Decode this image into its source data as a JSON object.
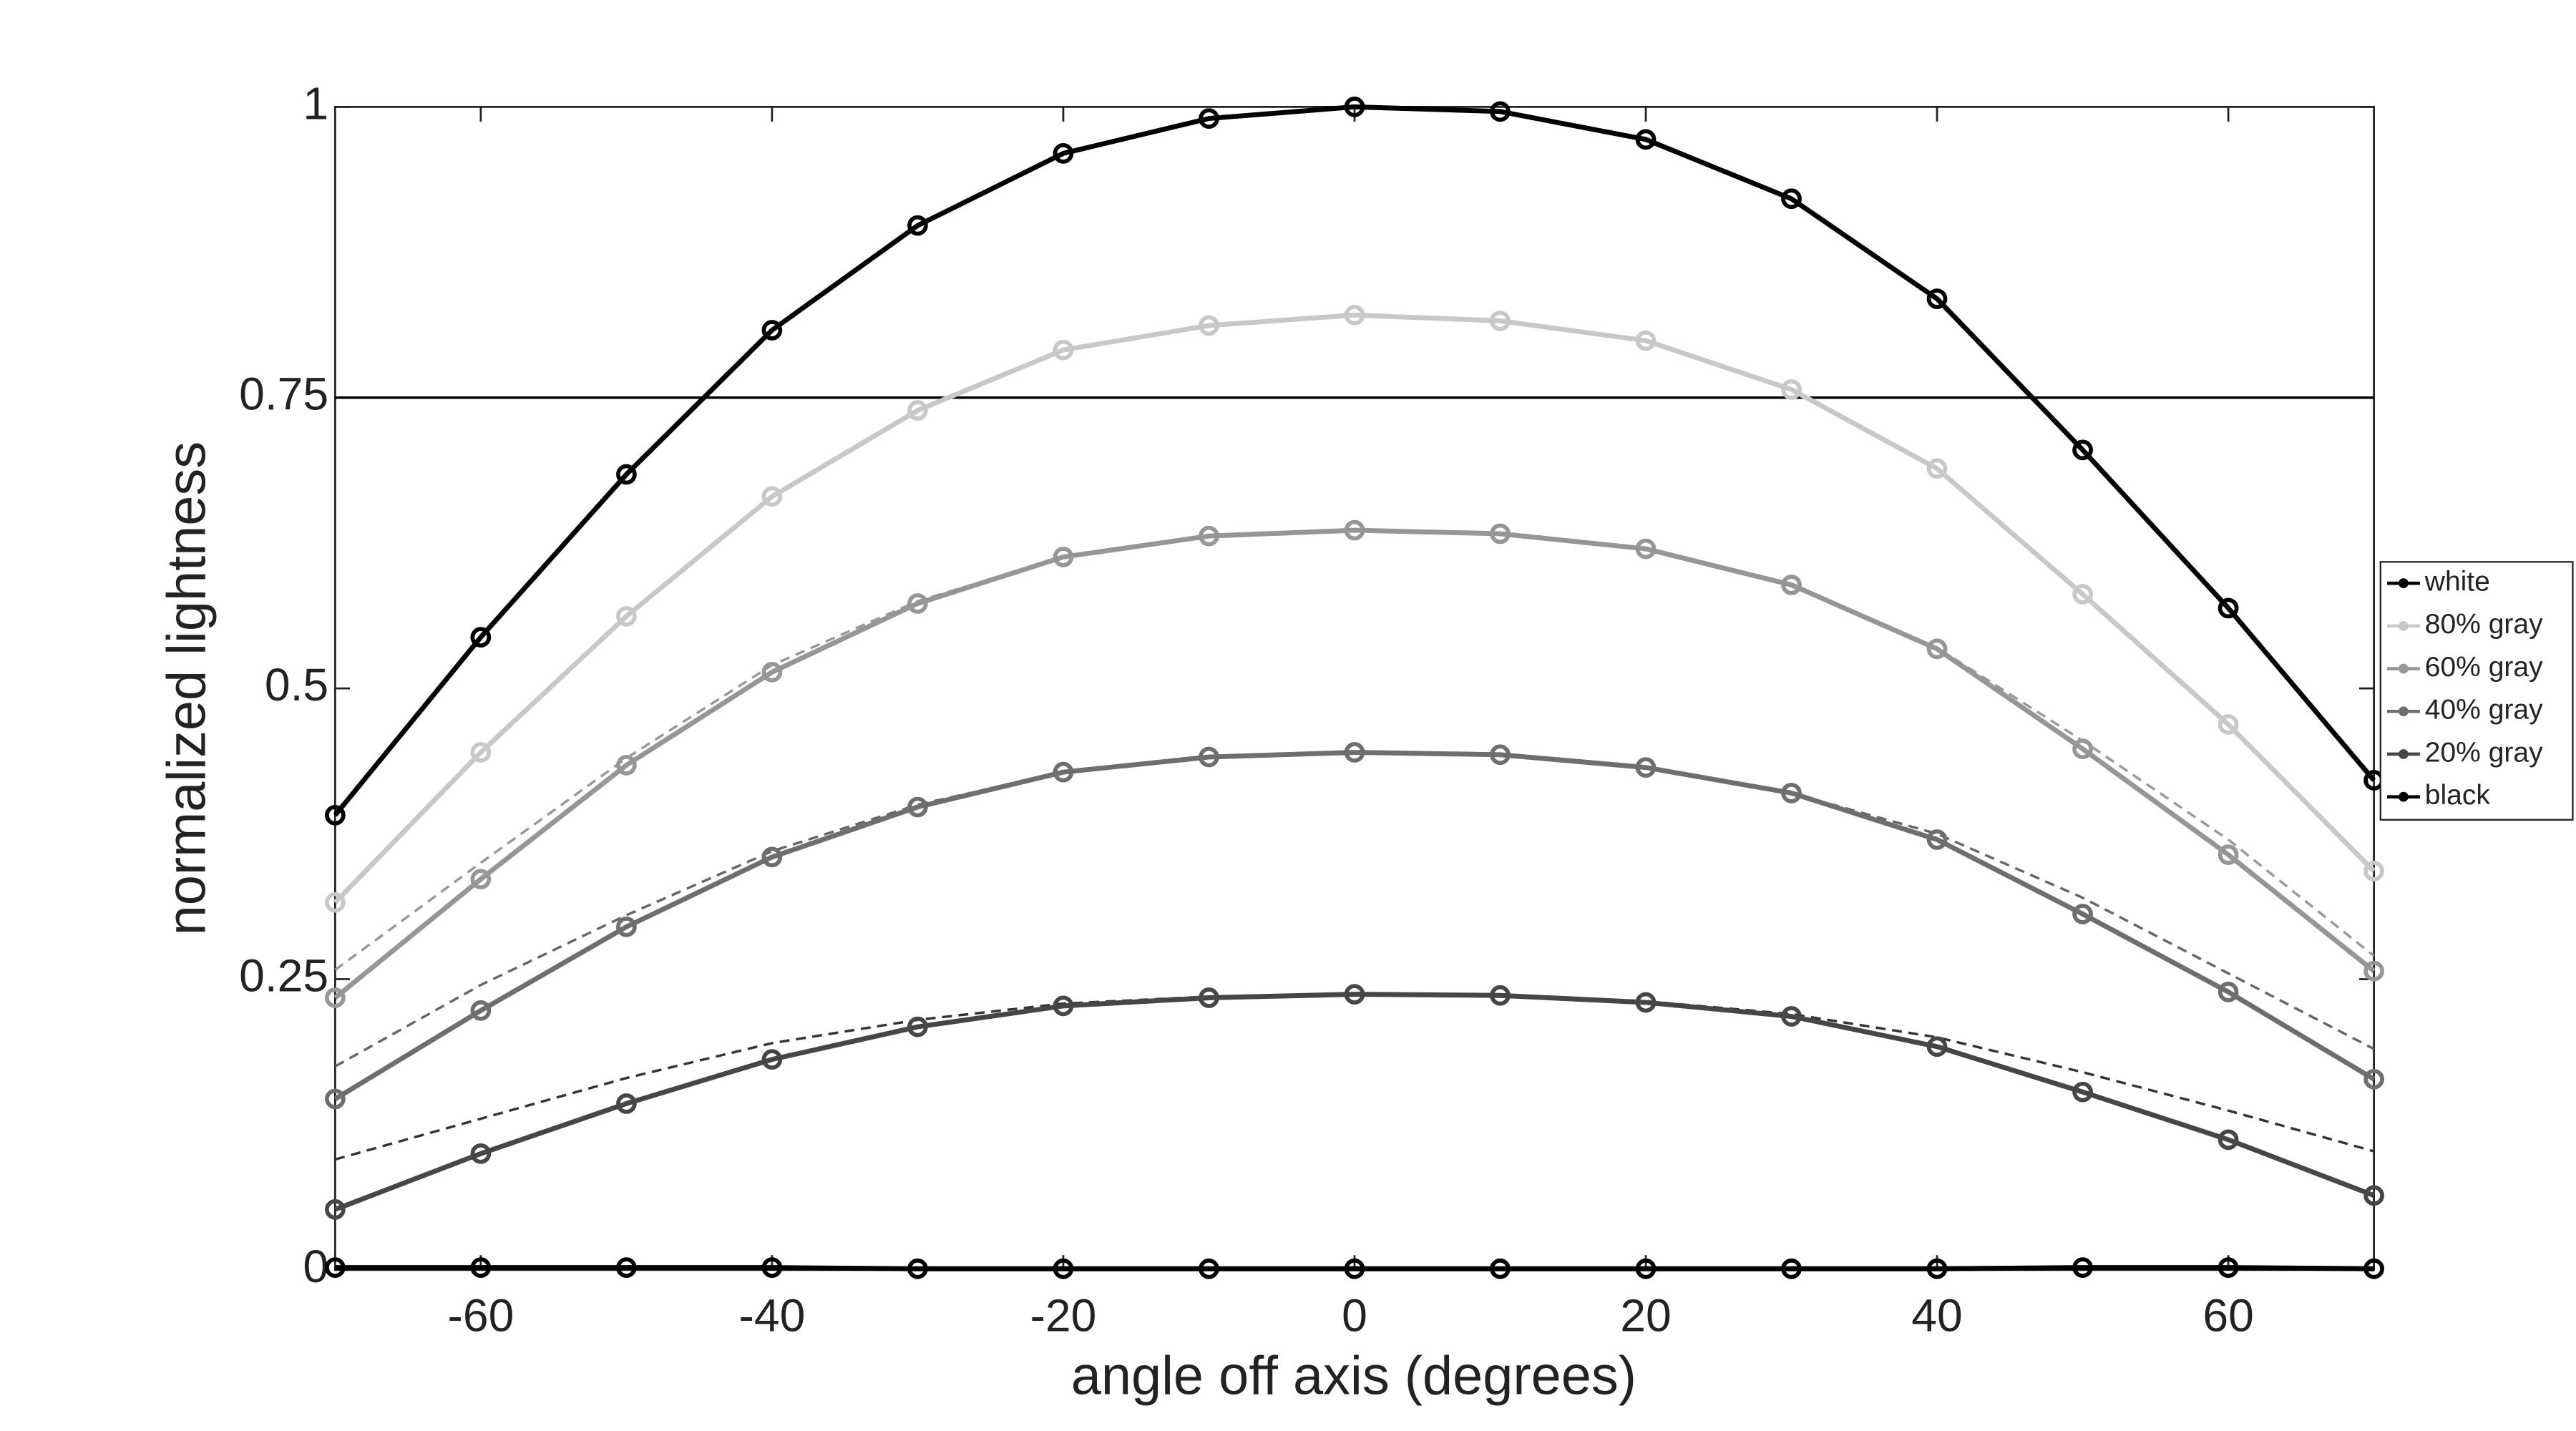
{
  "chart_data": {
    "type": "line",
    "x_label": "angle off axis (degrees)",
    "y_label": "normalized lightness",
    "x": [
      -70,
      -60,
      -50,
      -40,
      -30,
      -20,
      -10,
      0,
      10,
      20,
      30,
      40,
      50,
      60,
      70
    ],
    "xlim": [
      -70,
      70
    ],
    "xticks": [
      -60,
      -40,
      -20,
      0,
      20,
      40,
      60
    ],
    "ylim": [
      0,
      1
    ],
    "yticks": [
      0,
      0.25,
      0.5,
      0.75,
      1
    ],
    "hline": 0.75,
    "legend": "right",
    "series": [
      {
        "name": "white",
        "color": "#000000",
        "values": [
          0.391,
          0.544,
          0.684,
          0.808,
          0.898,
          0.96,
          0.99,
          1.0,
          0.996,
          0.972,
          0.921,
          0.835,
          0.705,
          0.569,
          0.421
        ]
      },
      {
        "name": "80% gray",
        "color": "#c8c8c8",
        "values": [
          0.316,
          0.445,
          0.562,
          0.665,
          0.739,
          0.791,
          0.812,
          0.821,
          0.816,
          0.799,
          0.757,
          0.689,
          0.581,
          0.469,
          0.343
        ]
      },
      {
        "name": "60% gray",
        "color": "#969696",
        "values": [
          0.234,
          0.336,
          0.434,
          0.514,
          0.573,
          0.613,
          0.631,
          0.636,
          0.633,
          0.62,
          0.589,
          0.534,
          0.448,
          0.357,
          0.257
        ]
      },
      {
        "name": "40% gray",
        "color": "#6e6e6e",
        "values": [
          0.147,
          0.223,
          0.295,
          0.355,
          0.398,
          0.428,
          0.441,
          0.445,
          0.443,
          0.432,
          0.41,
          0.37,
          0.306,
          0.239,
          0.164
        ]
      },
      {
        "name": "20% gray",
        "color": "#464646",
        "values": [
          0.052,
          0.1,
          0.143,
          0.181,
          0.209,
          0.227,
          0.234,
          0.237,
          0.236,
          0.23,
          0.218,
          0.192,
          0.153,
          0.112,
          0.064
        ]
      },
      {
        "name": "black",
        "color": "#000000",
        "values": [
          0.002,
          0.002,
          0.002,
          0.002,
          0.001,
          0.001,
          0.001,
          0.001,
          0.001,
          0.001,
          0.001,
          0.001,
          0.002,
          0.002,
          0.001
        ]
      }
    ],
    "reference_series": [
      {
        "color": "#999999",
        "values": [
          0.258,
          0.35,
          0.44,
          0.52,
          0.575,
          0.613,
          0.631,
          0.636,
          0.633,
          0.62,
          0.59,
          0.535,
          0.455,
          0.37,
          0.27
        ]
      },
      {
        "color": "#666666",
        "values": [
          0.175,
          0.245,
          0.305,
          0.36,
          0.4,
          0.428,
          0.441,
          0.445,
          0.443,
          0.432,
          0.41,
          0.375,
          0.32,
          0.255,
          0.19
        ]
      },
      {
        "color": "#333333",
        "values": [
          0.095,
          0.13,
          0.165,
          0.195,
          0.215,
          0.229,
          0.235,
          0.237,
          0.236,
          0.231,
          0.22,
          0.2,
          0.17,
          0.137,
          0.102
        ]
      }
    ]
  }
}
